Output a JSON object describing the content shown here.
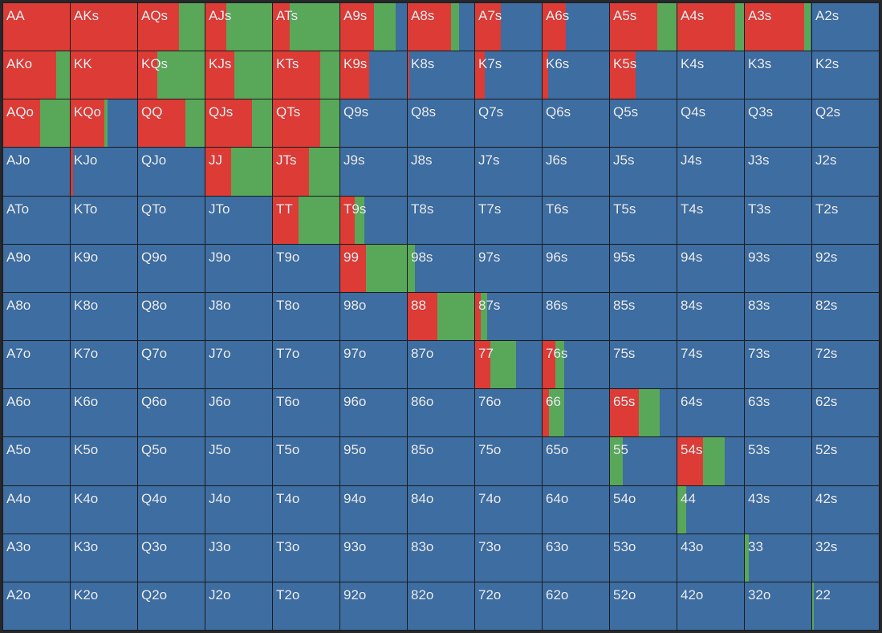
{
  "colors": {
    "raise": "#dd3b36",
    "call": "#59a85a",
    "fold": "#3d6da1"
  },
  "rows": [
    [
      {
        "hand": "AA",
        "raise": 1,
        "call": 0
      },
      {
        "hand": "AKs",
        "raise": 1,
        "call": 0
      },
      {
        "hand": "AQs",
        "raise": 0.62,
        "call": 0.38
      },
      {
        "hand": "AJs",
        "raise": 0.31,
        "call": 0.69
      },
      {
        "hand": "ATs",
        "raise": 0.25,
        "call": 0.75
      },
      {
        "hand": "A9s",
        "raise": 0.5,
        "call": 0.33
      },
      {
        "hand": "A8s",
        "raise": 0.65,
        "call": 0.12
      },
      {
        "hand": "A7s",
        "raise": 0.38,
        "call": 0
      },
      {
        "hand": "A6s",
        "raise": 0.35,
        "call": 0
      },
      {
        "hand": "A5s",
        "raise": 0.71,
        "call": 0.29
      },
      {
        "hand": "A4s",
        "raise": 0.87,
        "call": 0.13
      },
      {
        "hand": "A3s",
        "raise": 0.89,
        "call": 0.1
      },
      {
        "hand": "A2s",
        "raise": 0,
        "call": 0
      }
    ],
    [
      {
        "hand": "AKo",
        "raise": 0.8,
        "call": 0.2
      },
      {
        "hand": "KK",
        "raise": 1,
        "call": 0
      },
      {
        "hand": "KQs",
        "raise": 0.29,
        "call": 0.71
      },
      {
        "hand": "KJs",
        "raise": 0.43,
        "call": 0.57
      },
      {
        "hand": "KTs",
        "raise": 0.71,
        "call": 0.29
      },
      {
        "hand": "K9s",
        "raise": 0.43,
        "call": 0
      },
      {
        "hand": "K8s",
        "raise": 0.02,
        "call": 0
      },
      {
        "hand": "K7s",
        "raise": 0.14,
        "call": 0
      },
      {
        "hand": "K6s",
        "raise": 0.08,
        "call": 0
      },
      {
        "hand": "K5s",
        "raise": 0.39,
        "call": 0
      },
      {
        "hand": "K4s",
        "raise": 0,
        "call": 0
      },
      {
        "hand": "K3s",
        "raise": 0,
        "call": 0
      },
      {
        "hand": "K2s",
        "raise": 0,
        "call": 0
      }
    ],
    [
      {
        "hand": "AQo",
        "raise": 0.55,
        "call": 0.45
      },
      {
        "hand": "KQo",
        "raise": 0.5,
        "call": 0.06
      },
      {
        "hand": "QQ",
        "raise": 0.71,
        "call": 0.29
      },
      {
        "hand": "QJs",
        "raise": 0.7,
        "call": 0.3
      },
      {
        "hand": "QTs",
        "raise": 0.71,
        "call": 0.29
      },
      {
        "hand": "Q9s",
        "raise": 0,
        "call": 0
      },
      {
        "hand": "Q8s",
        "raise": 0,
        "call": 0
      },
      {
        "hand": "Q7s",
        "raise": 0,
        "call": 0
      },
      {
        "hand": "Q6s",
        "raise": 0,
        "call": 0
      },
      {
        "hand": "Q5s",
        "raise": 0,
        "call": 0
      },
      {
        "hand": "Q4s",
        "raise": 0,
        "call": 0
      },
      {
        "hand": "Q3s",
        "raise": 0,
        "call": 0
      },
      {
        "hand": "Q2s",
        "raise": 0,
        "call": 0
      }
    ],
    [
      {
        "hand": "AJo",
        "raise": 0,
        "call": 0
      },
      {
        "hand": "KJo",
        "raise": 0.04,
        "call": 0
      },
      {
        "hand": "QJo",
        "raise": 0,
        "call": 0
      },
      {
        "hand": "JJ",
        "raise": 0.39,
        "call": 0.61
      },
      {
        "hand": "JTs",
        "raise": 0.54,
        "call": 0.46
      },
      {
        "hand": "J9s",
        "raise": 0,
        "call": 0
      },
      {
        "hand": "J8s",
        "raise": 0,
        "call": 0
      },
      {
        "hand": "J7s",
        "raise": 0,
        "call": 0
      },
      {
        "hand": "J6s",
        "raise": 0,
        "call": 0
      },
      {
        "hand": "J5s",
        "raise": 0,
        "call": 0
      },
      {
        "hand": "J4s",
        "raise": 0,
        "call": 0
      },
      {
        "hand": "J3s",
        "raise": 0,
        "call": 0
      },
      {
        "hand": "J2s",
        "raise": 0,
        "call": 0
      }
    ],
    [
      {
        "hand": "ATo",
        "raise": 0,
        "call": 0
      },
      {
        "hand": "KTo",
        "raise": 0,
        "call": 0
      },
      {
        "hand": "QTo",
        "raise": 0,
        "call": 0
      },
      {
        "hand": "JTo",
        "raise": 0,
        "call": 0
      },
      {
        "hand": "TT",
        "raise": 0.39,
        "call": 0.61
      },
      {
        "hand": "T9s",
        "raise": 0.22,
        "call": 0.14
      },
      {
        "hand": "T8s",
        "raise": 0,
        "call": 0
      },
      {
        "hand": "T7s",
        "raise": 0,
        "call": 0
      },
      {
        "hand": "T6s",
        "raise": 0,
        "call": 0
      },
      {
        "hand": "T5s",
        "raise": 0,
        "call": 0
      },
      {
        "hand": "T4s",
        "raise": 0,
        "call": 0
      },
      {
        "hand": "T3s",
        "raise": 0,
        "call": 0
      },
      {
        "hand": "T2s",
        "raise": 0,
        "call": 0
      }
    ],
    [
      {
        "hand": "A9o",
        "raise": 0,
        "call": 0
      },
      {
        "hand": "K9o",
        "raise": 0,
        "call": 0
      },
      {
        "hand": "Q9o",
        "raise": 0,
        "call": 0
      },
      {
        "hand": "J9o",
        "raise": 0,
        "call": 0
      },
      {
        "hand": "T9o",
        "raise": 0,
        "call": 0
      },
      {
        "hand": "99",
        "raise": 0.39,
        "call": 0.61
      },
      {
        "hand": "98s",
        "raise": 0,
        "call": 0.11
      },
      {
        "hand": "97s",
        "raise": 0,
        "call": 0
      },
      {
        "hand": "96s",
        "raise": 0,
        "call": 0
      },
      {
        "hand": "95s",
        "raise": 0,
        "call": 0
      },
      {
        "hand": "94s",
        "raise": 0,
        "call": 0
      },
      {
        "hand": "93s",
        "raise": 0,
        "call": 0
      },
      {
        "hand": "92s",
        "raise": 0,
        "call": 0
      }
    ],
    [
      {
        "hand": "A8o",
        "raise": 0,
        "call": 0
      },
      {
        "hand": "K8o",
        "raise": 0,
        "call": 0
      },
      {
        "hand": "Q8o",
        "raise": 0,
        "call": 0
      },
      {
        "hand": "J8o",
        "raise": 0,
        "call": 0
      },
      {
        "hand": "T8o",
        "raise": 0,
        "call": 0
      },
      {
        "hand": "98o",
        "raise": 0,
        "call": 0
      },
      {
        "hand": "88",
        "raise": 0.45,
        "call": 0.55
      },
      {
        "hand": "87s",
        "raise": 0.08,
        "call": 0.1
      },
      {
        "hand": "86s",
        "raise": 0,
        "call": 0
      },
      {
        "hand": "85s",
        "raise": 0,
        "call": 0
      },
      {
        "hand": "84s",
        "raise": 0,
        "call": 0
      },
      {
        "hand": "83s",
        "raise": 0,
        "call": 0
      },
      {
        "hand": "82s",
        "raise": 0,
        "call": 0
      }
    ],
    [
      {
        "hand": "A7o",
        "raise": 0,
        "call": 0
      },
      {
        "hand": "K7o",
        "raise": 0,
        "call": 0
      },
      {
        "hand": "Q7o",
        "raise": 0,
        "call": 0
      },
      {
        "hand": "J7o",
        "raise": 0,
        "call": 0
      },
      {
        "hand": "T7o",
        "raise": 0,
        "call": 0
      },
      {
        "hand": "97o",
        "raise": 0,
        "call": 0
      },
      {
        "hand": "87o",
        "raise": 0,
        "call": 0
      },
      {
        "hand": "77",
        "raise": 0.23,
        "call": 0.38
      },
      {
        "hand": "76s",
        "raise": 0.19,
        "call": 0.14
      },
      {
        "hand": "75s",
        "raise": 0,
        "call": 0
      },
      {
        "hand": "74s",
        "raise": 0,
        "call": 0
      },
      {
        "hand": "73s",
        "raise": 0,
        "call": 0
      },
      {
        "hand": "72s",
        "raise": 0,
        "call": 0
      }
    ],
    [
      {
        "hand": "A6o",
        "raise": 0,
        "call": 0
      },
      {
        "hand": "K6o",
        "raise": 0,
        "call": 0
      },
      {
        "hand": "Q6o",
        "raise": 0,
        "call": 0
      },
      {
        "hand": "J6o",
        "raise": 0,
        "call": 0
      },
      {
        "hand": "T6o",
        "raise": 0,
        "call": 0
      },
      {
        "hand": "96o",
        "raise": 0,
        "call": 0
      },
      {
        "hand": "86o",
        "raise": 0,
        "call": 0
      },
      {
        "hand": "76o",
        "raise": 0,
        "call": 0
      },
      {
        "hand": "66",
        "raise": 0.1,
        "call": 0.23
      },
      {
        "hand": "65s",
        "raise": 0.43,
        "call": 0.32
      },
      {
        "hand": "64s",
        "raise": 0,
        "call": 0
      },
      {
        "hand": "63s",
        "raise": 0,
        "call": 0
      },
      {
        "hand": "62s",
        "raise": 0,
        "call": 0
      }
    ],
    [
      {
        "hand": "A5o",
        "raise": 0,
        "call": 0
      },
      {
        "hand": "K5o",
        "raise": 0,
        "call": 0
      },
      {
        "hand": "Q5o",
        "raise": 0,
        "call": 0
      },
      {
        "hand": "J5o",
        "raise": 0,
        "call": 0
      },
      {
        "hand": "T5o",
        "raise": 0,
        "call": 0
      },
      {
        "hand": "95o",
        "raise": 0,
        "call": 0
      },
      {
        "hand": "85o",
        "raise": 0,
        "call": 0
      },
      {
        "hand": "75o",
        "raise": 0,
        "call": 0
      },
      {
        "hand": "65o",
        "raise": 0,
        "call": 0
      },
      {
        "hand": "55",
        "raise": 0,
        "call": 0.19
      },
      {
        "hand": "54s",
        "raise": 0.39,
        "call": 0.32
      },
      {
        "hand": "53s",
        "raise": 0,
        "call": 0
      },
      {
        "hand": "52s",
        "raise": 0,
        "call": 0
      }
    ],
    [
      {
        "hand": "A4o",
        "raise": 0,
        "call": 0
      },
      {
        "hand": "K4o",
        "raise": 0,
        "call": 0
      },
      {
        "hand": "Q4o",
        "raise": 0,
        "call": 0
      },
      {
        "hand": "J4o",
        "raise": 0,
        "call": 0
      },
      {
        "hand": "T4o",
        "raise": 0,
        "call": 0
      },
      {
        "hand": "94o",
        "raise": 0,
        "call": 0
      },
      {
        "hand": "84o",
        "raise": 0,
        "call": 0
      },
      {
        "hand": "74o",
        "raise": 0,
        "call": 0
      },
      {
        "hand": "64o",
        "raise": 0,
        "call": 0
      },
      {
        "hand": "54o",
        "raise": 0,
        "call": 0
      },
      {
        "hand": "44",
        "raise": 0,
        "call": 0.13
      },
      {
        "hand": "43s",
        "raise": 0,
        "call": 0
      },
      {
        "hand": "42s",
        "raise": 0,
        "call": 0
      }
    ],
    [
      {
        "hand": "A3o",
        "raise": 0,
        "call": 0
      },
      {
        "hand": "K3o",
        "raise": 0,
        "call": 0
      },
      {
        "hand": "Q3o",
        "raise": 0,
        "call": 0
      },
      {
        "hand": "J3o",
        "raise": 0,
        "call": 0
      },
      {
        "hand": "T3o",
        "raise": 0,
        "call": 0
      },
      {
        "hand": "93o",
        "raise": 0,
        "call": 0
      },
      {
        "hand": "83o",
        "raise": 0,
        "call": 0
      },
      {
        "hand": "73o",
        "raise": 0,
        "call": 0
      },
      {
        "hand": "63o",
        "raise": 0,
        "call": 0
      },
      {
        "hand": "53o",
        "raise": 0,
        "call": 0
      },
      {
        "hand": "43o",
        "raise": 0,
        "call": 0
      },
      {
        "hand": "33",
        "raise": 0,
        "call": 0.06
      },
      {
        "hand": "32s",
        "raise": 0,
        "call": 0
      }
    ],
    [
      {
        "hand": "A2o",
        "raise": 0,
        "call": 0
      },
      {
        "hand": "K2o",
        "raise": 0,
        "call": 0
      },
      {
        "hand": "Q2o",
        "raise": 0,
        "call": 0
      },
      {
        "hand": "J2o",
        "raise": 0,
        "call": 0
      },
      {
        "hand": "T2o",
        "raise": 0,
        "call": 0
      },
      {
        "hand": "92o",
        "raise": 0,
        "call": 0
      },
      {
        "hand": "82o",
        "raise": 0,
        "call": 0
      },
      {
        "hand": "72o",
        "raise": 0,
        "call": 0
      },
      {
        "hand": "62o",
        "raise": 0,
        "call": 0
      },
      {
        "hand": "52o",
        "raise": 0,
        "call": 0
      },
      {
        "hand": "42o",
        "raise": 0,
        "call": 0
      },
      {
        "hand": "32o",
        "raise": 0,
        "call": 0
      },
      {
        "hand": "22",
        "raise": 0,
        "call": 0.02
      }
    ]
  ]
}
